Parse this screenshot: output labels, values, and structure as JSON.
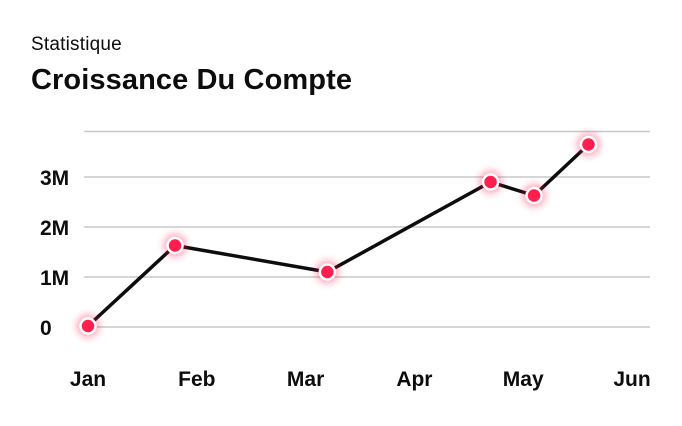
{
  "header": {
    "subtitle": "Statistique",
    "title": "Croissance Du Compte"
  },
  "colors": {
    "line": "#0d0d0d",
    "marker": "#ff1f4f",
    "marker_stroke": "#ffffff",
    "grid": "#c8c8c8"
  },
  "chart_data": {
    "type": "line",
    "title": "Croissance Du Compte",
    "subtitle": "Statistique",
    "xlabel": "",
    "ylabel": "",
    "x_ticks": [
      "Jan",
      "Feb",
      "Mar",
      "Apr",
      "May",
      "Jun"
    ],
    "y_ticks": [
      "0",
      "1M",
      "2M",
      "3M"
    ],
    "y_tick_values": [
      0,
      1000000,
      2000000,
      3000000
    ],
    "xlim": [
      0,
      5
    ],
    "ylim": [
      0,
      4000000
    ],
    "grid": true,
    "legend": "none",
    "series": [
      {
        "x": [
          0,
          0.8,
          2.2,
          3.7,
          4.1,
          4.6
        ],
        "y": [
          20000,
          1630000,
          1100000,
          2900000,
          2630000,
          3650000
        ]
      }
    ]
  }
}
